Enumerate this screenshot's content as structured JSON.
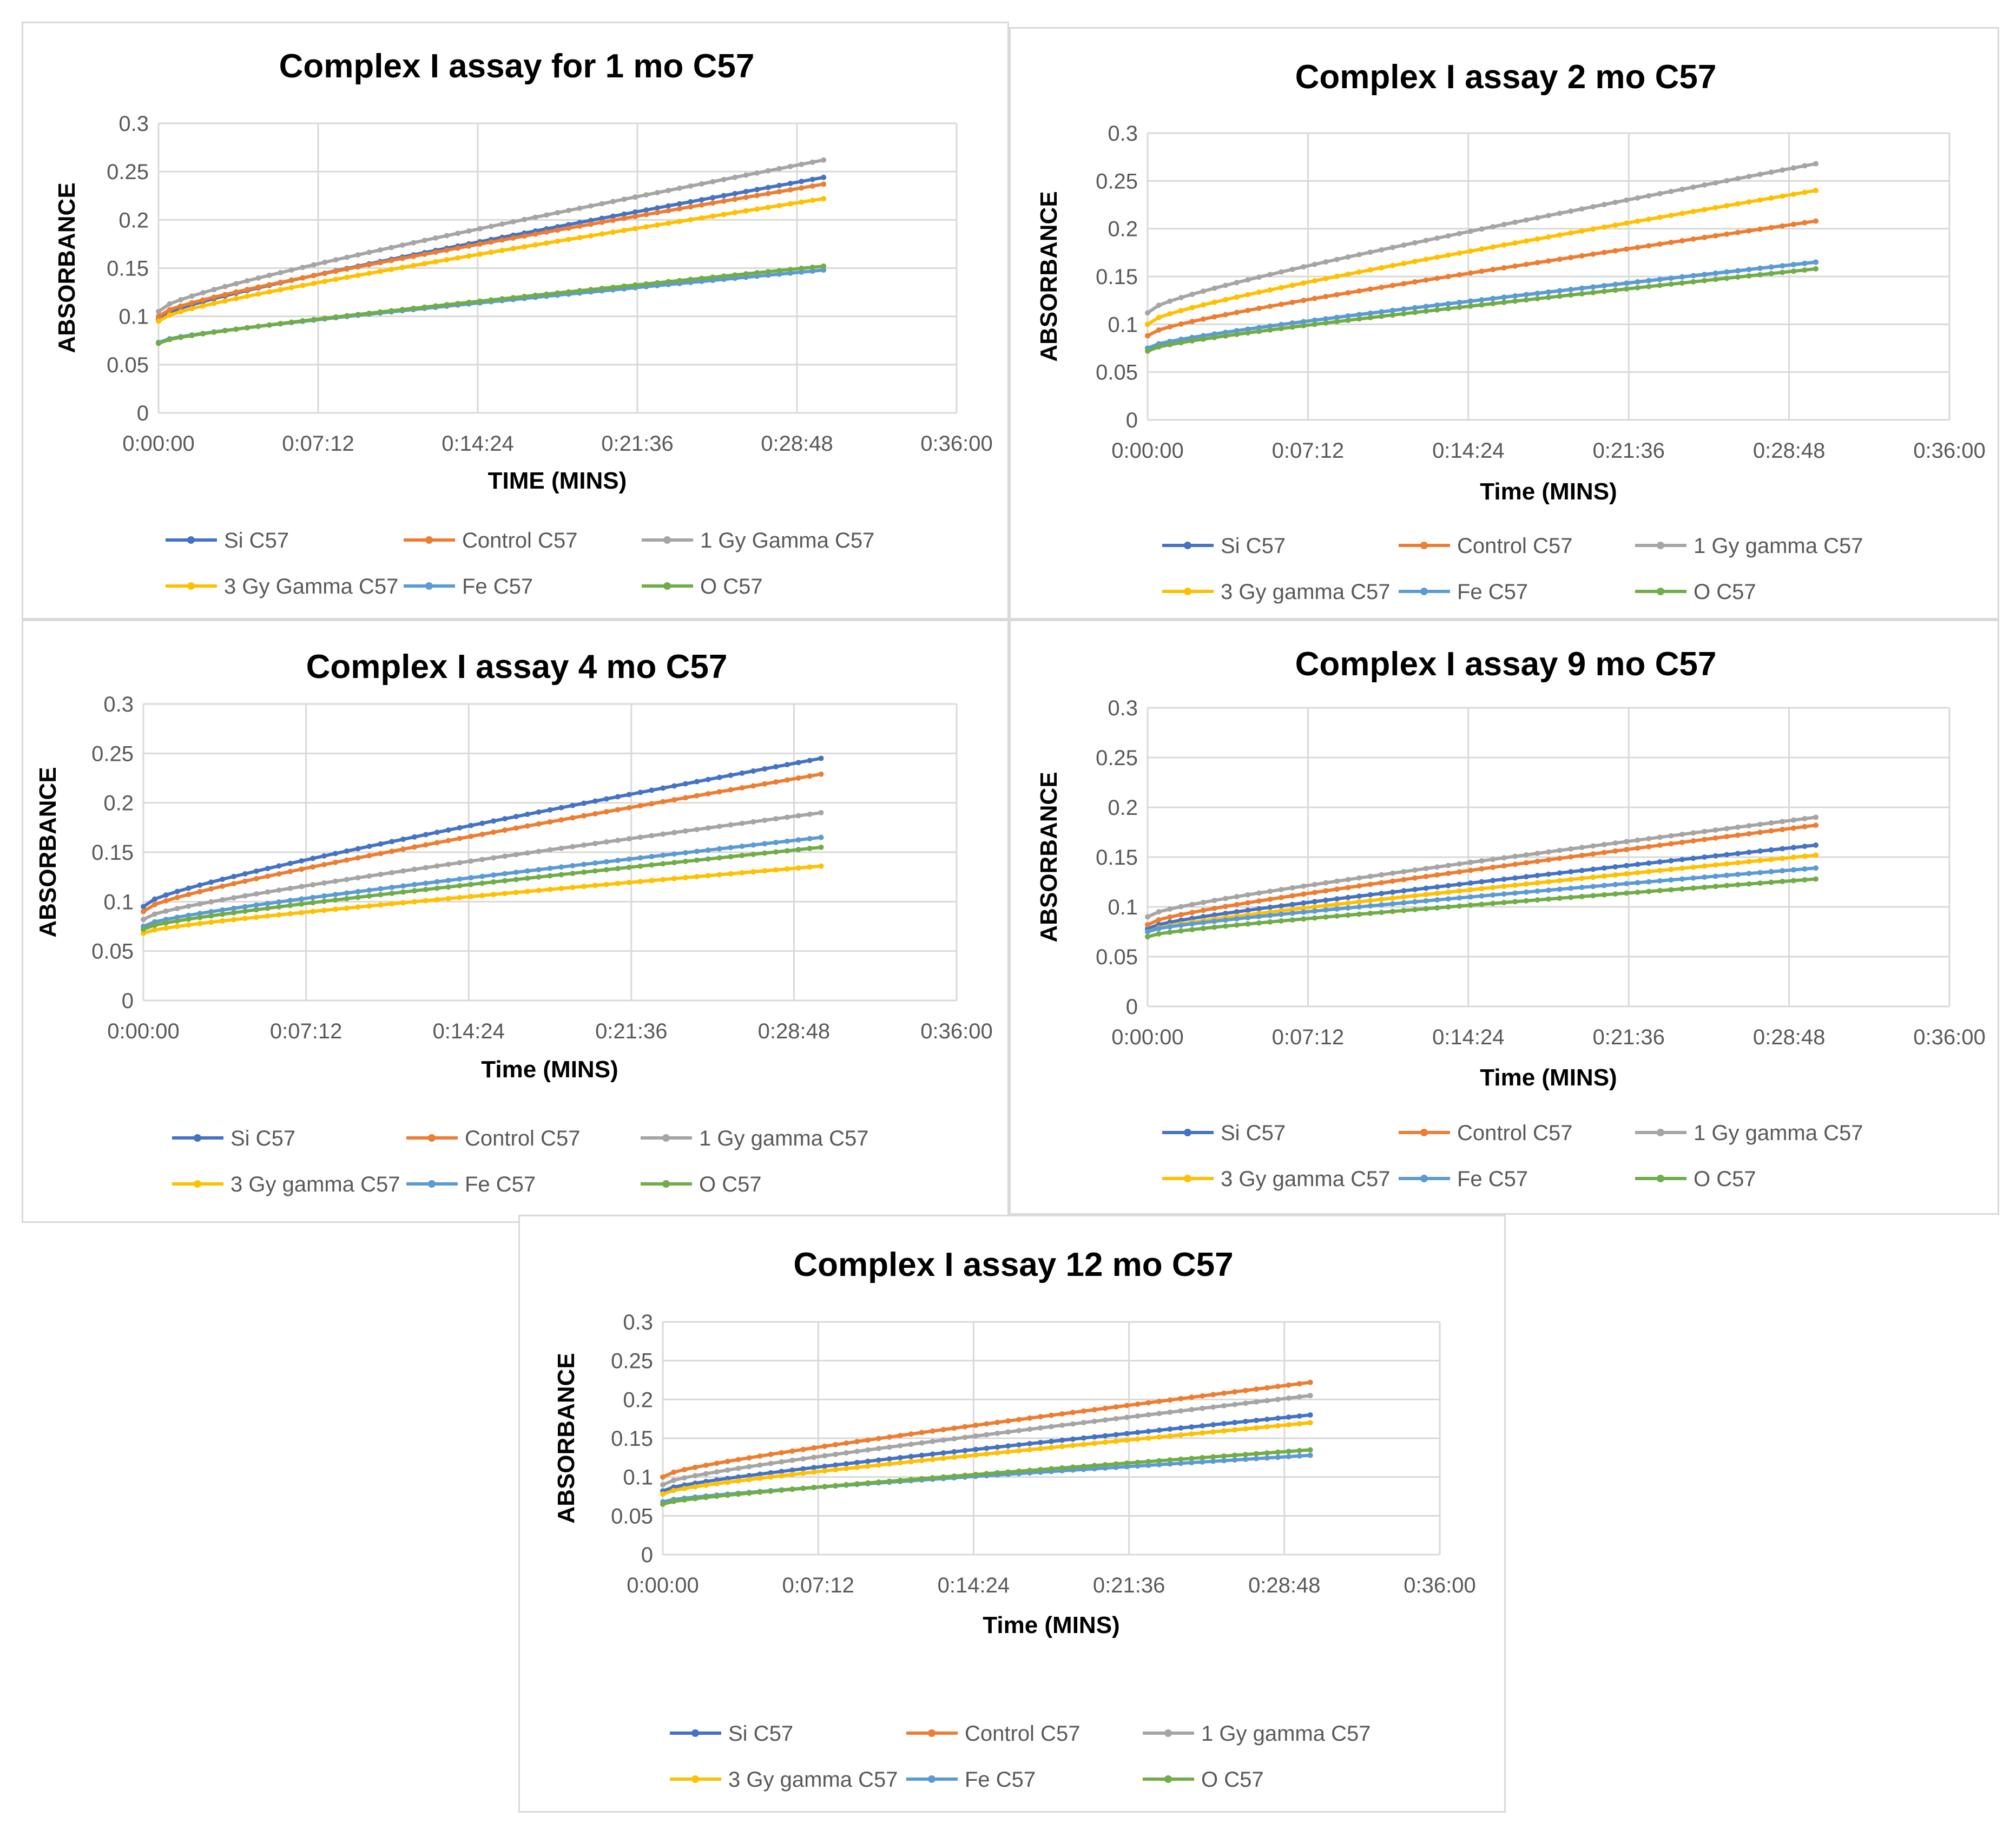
{
  "series_colors": {
    "Si C57": "#4472c4",
    "Control C57": "#ed7d31",
    "1 Gy C57": "#a5a5a5",
    "3 Gy C57": "#ffc000",
    "Fe C57": "#5b9bd5",
    "O C57": "#70ad47"
  },
  "chart_data": [
    {
      "type": "line",
      "title": "Complex I assay for 1 mo C57",
      "xlabel": "TIME (MINS)",
      "ylabel": "ABSORBANCE",
      "xticks": [
        "0:00:00",
        "0:07:12",
        "0:14:24",
        "0:21:36",
        "0:28:48",
        "0:36:00"
      ],
      "yticks": [
        "0",
        "0.05",
        "0.1",
        "0.15",
        "0.2",
        "0.25",
        "0.3"
      ],
      "xlim": [
        0,
        36
      ],
      "ylim": [
        0,
        0.3
      ],
      "legend": "bottom",
      "series": [
        {
          "name": "Si C57",
          "color_key": "Si C57",
          "start": 0.097,
          "end": 0.244,
          "shape": 1.0
        },
        {
          "name": "Control C57",
          "color_key": "Control C57",
          "start": 0.1,
          "end": 0.237,
          "shape": 1.0
        },
        {
          "name": "1 Gy Gamma C57",
          "color_key": "1 Gy C57",
          "start": 0.105,
          "end": 0.262,
          "shape": 1.0
        },
        {
          "name": "3 Gy Gamma C57",
          "color_key": "3 Gy C57",
          "start": 0.095,
          "end": 0.222,
          "shape": 1.0
        },
        {
          "name": "Fe C57",
          "color_key": "Fe C57",
          "start": 0.073,
          "end": 0.148,
          "shape": 1.0
        },
        {
          "name": "O C57",
          "color_key": "O C57",
          "start": 0.072,
          "end": 0.152,
          "shape": 1.0
        }
      ]
    },
    {
      "type": "line",
      "title": "Complex I assay 2 mo C57",
      "xlabel": "Time (MINS)",
      "ylabel": "ABSORBANCE",
      "xticks": [
        "0:00:00",
        "0:07:12",
        "0:14:24",
        "0:21:36",
        "0:28:48",
        "0:36:00"
      ],
      "yticks": [
        "0",
        "0.05",
        "0.1",
        "0.15",
        "0.2",
        "0.25",
        "0.3"
      ],
      "xlim": [
        0,
        36
      ],
      "ylim": [
        0,
        0.3
      ],
      "legend": "bottom",
      "series": [
        {
          "name": "Si C57",
          "color_key": "Si C57",
          "start": 0.075,
          "end": 0.165,
          "shape": 1.0
        },
        {
          "name": "Control C57",
          "color_key": "Control C57",
          "start": 0.088,
          "end": 0.208,
          "shape": 1.0
        },
        {
          "name": "1 Gy gamma C57",
          "color_key": "1 Gy C57",
          "start": 0.112,
          "end": 0.268,
          "shape": 1.0
        },
        {
          "name": "3 Gy gamma C57",
          "color_key": "3 Gy C57",
          "start": 0.1,
          "end": 0.24,
          "shape": 1.0
        },
        {
          "name": "Fe C57",
          "color_key": "Fe C57",
          "start": 0.075,
          "end": 0.165,
          "shape": 1.0
        },
        {
          "name": "O C57",
          "color_key": "O C57",
          "start": 0.072,
          "end": 0.158,
          "shape": 1.0
        }
      ]
    },
    {
      "type": "line",
      "title": "Complex I assay 4 mo C57",
      "xlabel": "Time (MINS)",
      "ylabel": "ABSORBANCE",
      "xticks": [
        "0:00:00",
        "0:07:12",
        "0:14:24",
        "0:21:36",
        "0:28:48",
        "0:36:00"
      ],
      "yticks": [
        "0",
        "0.05",
        "0.1",
        "0.15",
        "0.2",
        "0.25",
        "0.3"
      ],
      "xlim": [
        0,
        36
      ],
      "ylim": [
        0,
        0.3
      ],
      "legend": "bottom",
      "series": [
        {
          "name": "Si C57",
          "color_key": "Si C57",
          "start": 0.095,
          "end": 0.245,
          "shape": 1.0
        },
        {
          "name": "Control C57",
          "color_key": "Control C57",
          "start": 0.09,
          "end": 0.229,
          "shape": 1.0
        },
        {
          "name": "1 Gy gamma C57",
          "color_key": "1 Gy C57",
          "start": 0.082,
          "end": 0.19,
          "shape": 1.0
        },
        {
          "name": "3 Gy gamma C57",
          "color_key": "3 Gy C57",
          "start": 0.068,
          "end": 0.136,
          "shape": 1.0
        },
        {
          "name": "Fe C57",
          "color_key": "Fe C57",
          "start": 0.075,
          "end": 0.165,
          "shape": 1.0
        },
        {
          "name": "O C57",
          "color_key": "O C57",
          "start": 0.072,
          "end": 0.155,
          "shape": 1.0
        }
      ]
    },
    {
      "type": "line",
      "title": "Complex I assay 9 mo C57",
      "xlabel": "Time (MINS)",
      "ylabel": "ABSORBANCE",
      "xticks": [
        "0:00:00",
        "0:07:12",
        "0:14:24",
        "0:21:36",
        "0:28:48",
        "0:36:00"
      ],
      "yticks": [
        "0",
        "0.05",
        "0.1",
        "0.15",
        "0.2",
        "0.25",
        "0.3"
      ],
      "xlim": [
        0,
        36
      ],
      "ylim": [
        0,
        0.3
      ],
      "legend": "bottom",
      "series": [
        {
          "name": "Si C57",
          "color_key": "Si C57",
          "start": 0.078,
          "end": 0.162,
          "shape": 1.0
        },
        {
          "name": "Control C57",
          "color_key": "Control C57",
          "start": 0.082,
          "end": 0.182,
          "shape": 1.0
        },
        {
          "name": "1 Gy gamma C57",
          "color_key": "1 Gy C57",
          "start": 0.09,
          "end": 0.19,
          "shape": 1.0
        },
        {
          "name": "3 Gy gamma C57",
          "color_key": "3 Gy C57",
          "start": 0.075,
          "end": 0.152,
          "shape": 1.0
        },
        {
          "name": "Fe C57",
          "color_key": "Fe C57",
          "start": 0.075,
          "end": 0.139,
          "shape": 1.0
        },
        {
          "name": "O C57",
          "color_key": "O C57",
          "start": 0.07,
          "end": 0.128,
          "shape": 1.0
        }
      ]
    },
    {
      "type": "line",
      "title": "Complex I assay 12 mo C57",
      "xlabel": "Time (MINS)",
      "ylabel": "ABSORBANCE",
      "xticks": [
        "0:00:00",
        "0:07:12",
        "0:14:24",
        "0:21:36",
        "0:28:48",
        "0:36:00"
      ],
      "yticks": [
        "0",
        "0.05",
        "0.1",
        "0.15",
        "0.2",
        "0.25",
        "0.3"
      ],
      "xlim": [
        0,
        36
      ],
      "ylim": [
        0,
        0.3
      ],
      "legend": "bottom",
      "series": [
        {
          "name": "Si C57",
          "color_key": "Si C57",
          "start": 0.082,
          "end": 0.18,
          "shape": 1.0
        },
        {
          "name": "Control C57",
          "color_key": "Control C57",
          "start": 0.1,
          "end": 0.222,
          "shape": 1.0
        },
        {
          "name": "1 Gy gamma C57",
          "color_key": "1 Gy C57",
          "start": 0.09,
          "end": 0.205,
          "shape": 1.0
        },
        {
          "name": "3 Gy gamma C57",
          "color_key": "3 Gy C57",
          "start": 0.078,
          "end": 0.17,
          "shape": 1.0
        },
        {
          "name": "Fe C57",
          "color_key": "Fe C57",
          "start": 0.068,
          "end": 0.128,
          "shape": 1.0
        },
        {
          "name": "O C57",
          "color_key": "O C57",
          "start": 0.065,
          "end": 0.135,
          "shape": 1.0
        }
      ]
    }
  ]
}
